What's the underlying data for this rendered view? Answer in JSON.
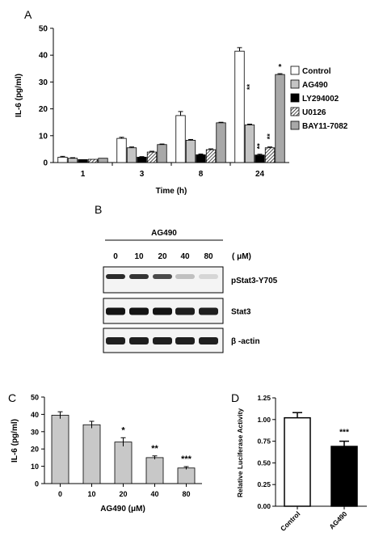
{
  "panels": {
    "a": "A",
    "b": "B",
    "c": "C",
    "d": "D"
  },
  "chart_data": [
    {
      "panel": "A",
      "type": "bar",
      "xlabel": "Time (h)",
      "ylabel": "IL-6 (pg/ml)",
      "ylim": [
        0,
        50
      ],
      "yticks": [
        "0",
        "10",
        "20",
        "30",
        "40",
        "50"
      ],
      "categories": [
        "1",
        "3",
        "8",
        "24"
      ],
      "legend_position": "right",
      "series": [
        {
          "name": "Control",
          "fill": "#ffffff",
          "values": [
            2.0,
            9.0,
            17.5,
            41.5
          ],
          "errors": [
            0.3,
            0.4,
            1.5,
            1.3
          ],
          "marks": [
            "",
            "",
            "",
            ""
          ]
        },
        {
          "name": "AG490",
          "fill": "#c4c4c4",
          "values": [
            1.6,
            5.5,
            8.3,
            14.0
          ],
          "errors": [
            0.2,
            0.3,
            0.3,
            0.3
          ],
          "marks": [
            "",
            "",
            "",
            "**"
          ]
        },
        {
          "name": "LY294002",
          "fill": "#000000",
          "values": [
            1.1,
            2.0,
            2.9,
            2.8
          ],
          "errors": [
            0.1,
            0.2,
            0.3,
            0.3
          ],
          "marks": [
            "",
            "",
            "",
            "**"
          ]
        },
        {
          "name": "U0126",
          "fill": "hatch",
          "values": [
            1.2,
            3.9,
            4.8,
            5.5
          ],
          "errors": [
            0.1,
            0.3,
            0.3,
            0.3
          ],
          "marks": [
            "",
            "",
            "",
            "**"
          ]
        },
        {
          "name": "BAY11-7082",
          "fill": "#a8a8a8",
          "values": [
            1.6,
            6.7,
            14.8,
            32.8
          ],
          "errors": [
            0.1,
            0.2,
            0.2,
            0.3
          ],
          "marks": [
            "",
            "",
            "",
            "*"
          ]
        }
      ]
    },
    {
      "panel": "C",
      "type": "bar",
      "xlabel": "AG490 (μM)",
      "ylabel": "IL-6 (pg/ml)",
      "ylim": [
        0,
        50
      ],
      "yticks": [
        "0",
        "10",
        "20",
        "30",
        "40",
        "50"
      ],
      "categories": [
        "0",
        "10",
        "20",
        "40",
        "80"
      ],
      "values": [
        39.5,
        34.0,
        24.0,
        15.0,
        9.0
      ],
      "errors": [
        2.0,
        2.0,
        2.5,
        1.0,
        0.8
      ],
      "marks": [
        "",
        "",
        "*",
        "**",
        "***"
      ],
      "bar_color": "#c8c8c8"
    },
    {
      "panel": "D",
      "type": "bar",
      "ylabel": "Relative Luciferase Activity",
      "ylim": [
        0,
        1.25
      ],
      "yticks": [
        "0.00",
        "0.25",
        "0.50",
        "0.75",
        "1.00",
        "1.25"
      ],
      "categories": [
        "Control",
        "AG490"
      ],
      "values": [
        1.02,
        0.69
      ],
      "errors": [
        0.06,
        0.06
      ],
      "marks": [
        "",
        "***"
      ],
      "bar_colors": [
        "#ffffff",
        "#000000"
      ]
    }
  ],
  "blot": {
    "treatment": "AG490",
    "unit": "( μM)",
    "lanes": [
      "0",
      "10",
      "20",
      "40",
      "80"
    ],
    "rows": [
      {
        "label": "pStat3-Y705",
        "intensities": [
          0.9,
          0.85,
          0.75,
          0.2,
          0.1
        ]
      },
      {
        "label": "Stat3",
        "intensities": [
          1.0,
          1.0,
          1.0,
          0.95,
          0.95
        ]
      },
      {
        "label": "β -actin",
        "intensities": [
          0.95,
          0.95,
          0.95,
          0.95,
          0.95
        ]
      }
    ]
  }
}
